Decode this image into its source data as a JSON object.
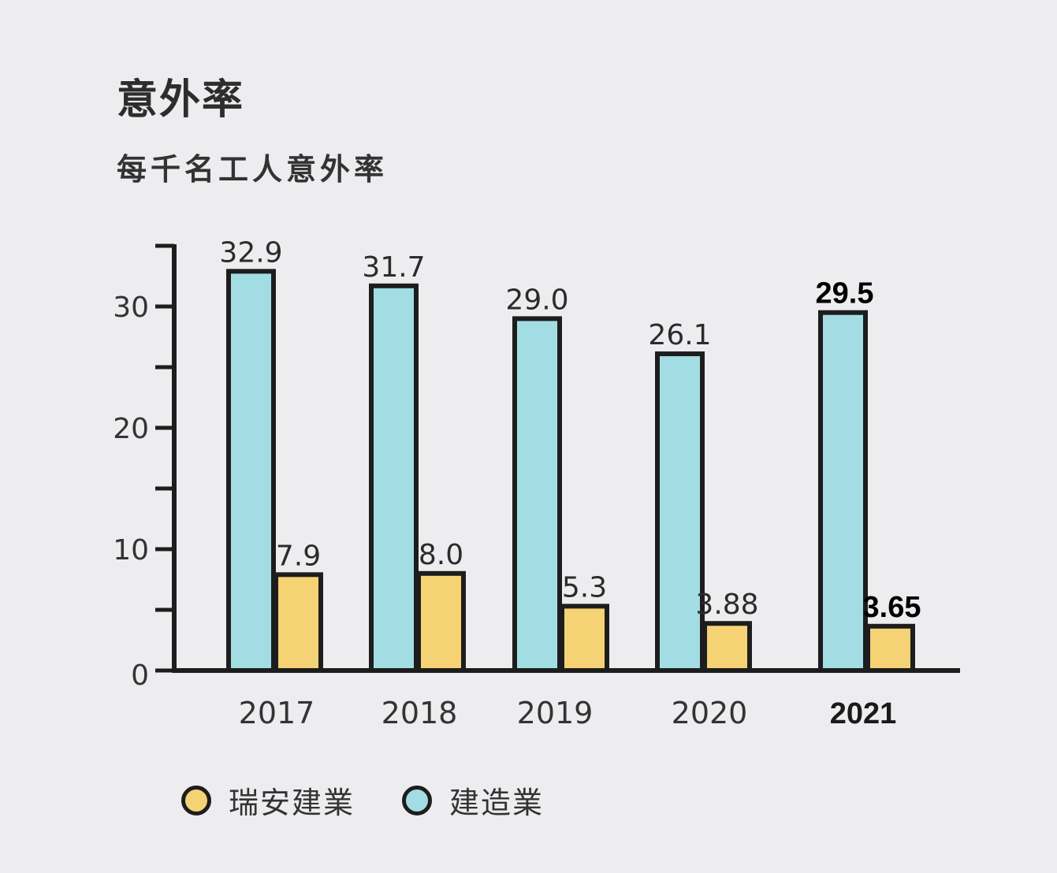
{
  "chart_data": {
    "type": "bar",
    "title": "意外率",
    "subtitle": "每千名工人意外率",
    "categories": [
      "2017",
      "2018",
      "2019",
      "2020",
      "2021"
    ],
    "highlight_category": "2021",
    "series": [
      {
        "name": "建造業",
        "color": "#a3dde4",
        "values": [
          32.9,
          31.7,
          29.0,
          26.1,
          29.5
        ],
        "labels": [
          "32.9",
          "31.7",
          "29.0",
          "26.1",
          "29.5"
        ]
      },
      {
        "name": "瑞安建業",
        "color": "#f5d274",
        "values": [
          7.9,
          8.0,
          5.3,
          3.88,
          3.65
        ],
        "labels": [
          "7.9",
          "8.0",
          "5.3",
          "3.88",
          "3.65"
        ]
      }
    ],
    "y_ticks": [
      "0",
      "10",
      "20",
      "30"
    ],
    "ylim": [
      0,
      35
    ],
    "xlabel": "",
    "ylabel": "",
    "legend": [
      {
        "label": "瑞安建業",
        "color": "#f5d274"
      },
      {
        "label": "建造業",
        "color": "#a3dde4"
      }
    ],
    "legend_position": "bottom-left"
  }
}
